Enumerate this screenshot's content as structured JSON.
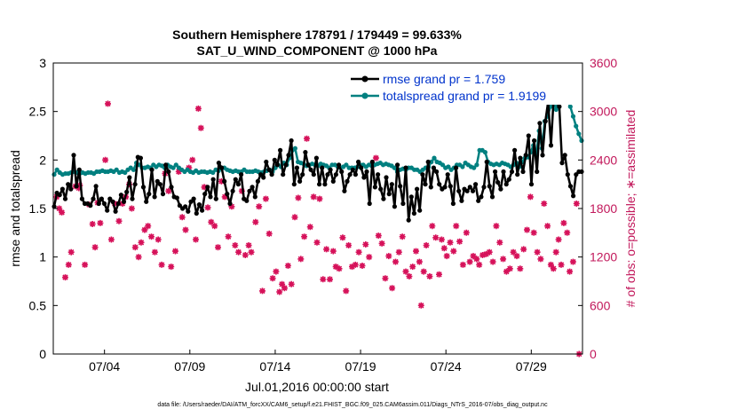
{
  "chart_data": {
    "type": "line",
    "title": "Southern Hemisphere 178791 / 179449 = 99.633%",
    "subtitle": "SAT_U_WIND_COMPONENT @ 1000 hPa",
    "ylabel_left": "rmse and totalspread",
    "ylabel_right": "# of obs: o=possible; ∗=assimilated",
    "xlabel": "Jul.01,2016 00:00:00 start",
    "footer": "data file: /Users/raeder/DAI/ATM_forcXX/CAM6_setup/f.e21.FHIST_BGC.f09_025.CAM6assim.011/Diags_NTrS_2016-07/obs_diag_output.nc",
    "x_tick_labels": [
      "07/04",
      "07/09",
      "07/14",
      "07/19",
      "07/24",
      "07/29"
    ],
    "x_tick_positions_days": [
      3,
      8,
      13,
      18,
      23,
      28
    ],
    "xlim_days": [
      0,
      31
    ],
    "y_left_ticks": [
      "0",
      "0.5",
      "1",
      "1.5",
      "2",
      "2.5",
      "3"
    ],
    "y_left_lim": [
      0,
      3
    ],
    "y_right_ticks": [
      "0",
      "600",
      "1200",
      "1800",
      "2400",
      "3000",
      "3600"
    ],
    "y_right_lim": [
      0,
      3600
    ],
    "colors": {
      "rmse": "#000000",
      "spread": "#008080",
      "obs": "#d6125a",
      "legend_text": "#0033cc",
      "right_axis": "#c2185b"
    },
    "series": [
      {
        "name": "rmse grand pr = 1.759",
        "legend_label": "rmse grand pr = 1.759",
        "marker": "circle",
        "values": [
          1.52,
          1.66,
          1.64,
          1.7,
          1.6,
          1.75,
          1.7,
          2.05,
          1.73,
          1.9,
          1.6,
          1.55,
          1.55,
          1.53,
          1.6,
          1.73,
          1.55,
          1.6,
          1.55,
          1.48,
          1.6,
          1.57,
          1.47,
          1.55,
          1.64,
          1.57,
          1.67,
          1.82,
          1.6,
          1.75,
          2.03,
          2.02,
          1.72,
          1.57,
          1.65,
          1.9,
          1.62,
          1.78,
          1.75,
          1.65,
          1.95,
          1.88,
          1.72,
          1.62,
          1.61,
          1.53,
          1.5,
          1.52,
          1.47,
          1.57,
          1.6,
          1.45,
          1.54,
          1.48,
          1.65,
          1.72,
          1.62,
          1.8,
          1.6,
          1.97,
          1.92,
          1.78,
          1.65,
          1.55,
          1.68,
          1.8,
          1.75,
          1.85,
          1.6,
          1.58,
          1.68,
          1.72,
          1.62,
          1.78,
          1.85,
          1.82,
          1.98,
          1.9,
          1.85,
          2.0,
          1.95,
          2.1,
          1.85,
          1.95,
          2.05,
          2.2,
          1.75,
          1.92,
          1.78,
          1.85,
          2.08,
          1.95,
          1.9,
          1.85,
          2.02,
          1.75,
          1.92,
          1.75,
          1.85,
          1.9,
          1.78,
          1.85,
          1.95,
          1.88,
          1.68,
          1.78,
          1.85,
          1.9,
          1.85,
          1.98,
          1.92,
          1.82,
          1.88,
          1.55,
          1.98,
          1.72,
          1.85,
          1.7,
          1.6,
          1.82,
          1.65,
          1.75,
          1.52,
          1.95,
          1.73,
          1.55,
          1.92,
          1.38,
          1.62,
          1.45,
          1.7,
          1.48,
          1.85,
          1.75,
          1.98,
          1.72,
          1.92,
          1.88,
          1.75,
          1.7,
          1.72,
          1.85,
          1.73,
          1.55,
          1.92,
          1.68,
          1.58,
          1.7,
          1.68,
          1.72,
          1.68,
          1.75,
          1.58,
          1.62,
          1.72,
          1.98,
          1.73,
          1.62,
          1.88,
          1.77,
          1.7,
          1.88,
          1.75,
          1.8,
          1.88,
          2.1,
          1.85,
          2.02,
          1.88,
          2.05,
          2.25,
          1.75,
          2.2,
          1.88,
          2.38,
          2.05,
          2.4,
          2.6,
          2.15,
          2.65,
          2.6,
          2.55,
          1.97,
          2.05,
          1.85,
          1.73,
          1.63,
          1.85,
          1.88,
          1.88
        ]
      },
      {
        "name": "totalspread grand pr = 1.9199",
        "legend_label": "totalspread grand pr = 1.9199",
        "marker": "circle",
        "values": [
          1.85,
          1.9,
          1.87,
          1.85,
          1.86,
          1.86,
          1.87,
          1.88,
          1.87,
          1.86,
          1.87,
          1.86,
          1.87,
          1.87,
          1.86,
          1.88,
          1.88,
          1.89,
          1.88,
          1.88,
          1.89,
          1.88,
          1.9,
          1.87,
          1.88,
          1.87,
          1.9,
          1.92,
          1.9,
          1.97,
          1.95,
          1.92,
          1.92,
          1.93,
          1.92,
          1.95,
          1.93,
          1.95,
          1.94,
          1.92,
          1.95,
          1.93,
          1.92,
          1.95,
          1.92,
          1.9,
          1.88,
          1.9,
          1.88,
          1.87,
          1.89,
          1.87,
          1.88,
          1.88,
          1.87,
          1.88,
          1.87,
          1.9,
          1.89,
          1.92,
          1.92,
          1.9,
          1.89,
          1.88,
          1.89,
          1.88,
          1.88,
          1.9,
          1.88,
          1.88,
          1.88,
          1.89,
          1.88,
          1.87,
          1.88,
          1.89,
          1.9,
          1.88,
          1.92,
          1.95,
          1.93,
          1.97,
          1.95,
          2.02,
          2.1,
          2.12,
          1.98,
          1.97,
          1.96,
          1.94,
          1.95,
          1.96,
          1.95,
          1.94,
          1.96,
          1.95,
          1.94,
          1.92,
          1.95,
          1.95,
          1.93,
          1.92,
          1.93,
          1.95,
          1.92,
          1.92,
          1.92,
          1.93,
          1.95,
          1.95,
          1.93,
          1.95,
          1.94,
          1.95,
          1.96,
          1.97,
          1.95,
          1.96,
          1.95,
          1.94,
          1.92,
          1.88,
          1.9,
          1.91,
          1.9,
          1.92,
          1.92,
          1.9,
          1.9,
          1.88,
          1.9,
          1.92,
          1.93,
          1.98,
          2.02,
          1.98,
          1.97,
          1.95,
          1.92,
          1.93,
          1.9,
          1.92,
          1.95,
          1.95,
          1.93,
          1.97,
          1.95,
          1.93,
          1.92,
          1.95,
          2.1,
          2.1,
          2.08,
          1.98,
          1.96,
          1.95,
          1.96,
          1.95,
          1.97,
          1.96,
          1.95,
          1.93,
          1.95,
          1.97,
          1.93,
          1.98,
          2.02,
          2.03,
          2.08,
          2.15,
          2.05,
          2.3,
          2.12,
          2.4,
          2.45,
          2.55,
          2.6,
          2.52,
          2.75,
          2.78,
          2.75,
          2.62,
          2.55,
          2.45,
          2.35,
          2.27,
          2.2
        ]
      }
    ],
    "obs_assimilated_pts": [
      [
        0.2,
        1.62
      ],
      [
        0.35,
        1.5
      ],
      [
        0.5,
        1.46
      ],
      [
        0.7,
        0.79
      ],
      [
        0.9,
        0.92
      ],
      [
        1.05,
        1.05
      ],
      [
        1.3,
        1.73
      ],
      [
        1.5,
        1.71
      ],
      [
        1.55,
        1.74
      ],
      [
        1.85,
        0.92
      ],
      [
        2.1,
        1.54
      ],
      [
        2.3,
        1.34
      ],
      [
        2.45,
        1.1
      ],
      [
        2.6,
        1.56
      ],
      [
        2.75,
        1.35
      ],
      [
        3.05,
        2.0
      ],
      [
        3.2,
        2.58
      ],
      [
        3.4,
        1.18
      ],
      [
        3.6,
        1.55
      ],
      [
        3.85,
        1.37
      ],
      [
        4.05,
        1.55
      ],
      [
        4.25,
        1.62
      ],
      [
        4.45,
        1.75
      ],
      [
        4.6,
        1.5
      ],
      [
        4.8,
        1.1
      ],
      [
        5.0,
        1.0
      ],
      [
        5.15,
        1.15
      ],
      [
        5.35,
        1.28
      ],
      [
        5.55,
        1.32
      ],
      [
        5.75,
        1.21
      ],
      [
        5.95,
        1.05
      ],
      [
        6.15,
        1.18
      ],
      [
        6.35,
        0.92
      ],
      [
        6.55,
        1.86
      ],
      [
        6.75,
        1.68
      ],
      [
        6.9,
        0.9
      ],
      [
        7.15,
        1.06
      ],
      [
        7.35,
        1.88
      ],
      [
        7.55,
        1.41
      ],
      [
        7.75,
        1.28
      ],
      [
        7.95,
        1.92
      ],
      [
        8.15,
        2.0
      ],
      [
        8.35,
        1.18
      ],
      [
        8.5,
        2.53
      ],
      [
        8.65,
        2.33
      ],
      [
        8.85,
        1.72
      ],
      [
        9.05,
        1.51
      ],
      [
        9.25,
        1.36
      ],
      [
        9.45,
        1.32
      ],
      [
        9.65,
        1.1
      ],
      [
        9.85,
        1.78
      ],
      [
        10.05,
        1.62
      ],
      [
        10.25,
        1.21
      ],
      [
        10.45,
        1.52
      ],
      [
        10.65,
        1.12
      ],
      [
        10.85,
        1.05
      ],
      [
        11.05,
        1.68
      ],
      [
        11.25,
        1.02
      ],
      [
        11.45,
        1.12
      ],
      [
        11.6,
        1.05
      ],
      [
        11.85,
        1.36
      ],
      [
        12.05,
        1.52
      ],
      [
        12.25,
        0.65
      ],
      [
        12.45,
        1.6
      ],
      [
        12.65,
        1.24
      ],
      [
        12.85,
        0.78
      ],
      [
        13.05,
        0.85
      ],
      [
        13.25,
        0.64
      ],
      [
        13.4,
        0.72
      ],
      [
        13.55,
        0.68
      ],
      [
        13.75,
        0.91
      ],
      [
        13.95,
        0.72
      ],
      [
        14.15,
        1.41
      ],
      [
        14.35,
        1.61
      ],
      [
        14.5,
        0.98
      ],
      [
        14.7,
        1.21
      ],
      [
        14.85,
        2.22
      ],
      [
        15.05,
        1.31
      ],
      [
        15.25,
        1.62
      ],
      [
        15.45,
        1.15
      ],
      [
        15.6,
        1.6
      ],
      [
        15.8,
        0.77
      ],
      [
        16.0,
        1.08
      ],
      [
        16.2,
        0.77
      ],
      [
        16.4,
        1.06
      ],
      [
        16.55,
        0.9
      ],
      [
        16.75,
        0.88
      ],
      [
        16.95,
        1.2
      ],
      [
        17.15,
        0.65
      ],
      [
        17.3,
        1.12
      ],
      [
        17.5,
        0.9
      ],
      [
        17.7,
        0.92
      ],
      [
        17.9,
        1.05
      ],
      [
        18.1,
        0.91
      ],
      [
        18.3,
        1.13
      ],
      [
        18.5,
        1.0
      ],
      [
        18.7,
        1.95
      ],
      [
        18.9,
        2.02
      ],
      [
        19.05,
        1.22
      ],
      [
        19.25,
        1.14
      ],
      [
        19.45,
        0.78
      ],
      [
        19.65,
        1.01
      ],
      [
        19.85,
        0.68
      ],
      [
        20.05,
        0.95
      ],
      [
        20.25,
        1.05
      ],
      [
        20.45,
        1.21
      ],
      [
        20.65,
        0.85
      ],
      [
        20.85,
        0.8
      ],
      [
        21.05,
        0.9
      ],
      [
        21.25,
        1.06
      ],
      [
        21.45,
        0.95
      ],
      [
        21.55,
        0.5
      ],
      [
        21.7,
        0.85
      ],
      [
        21.85,
        1.12
      ],
      [
        22.05,
        0.8
      ],
      [
        22.2,
        1.32
      ],
      [
        22.4,
        1.2
      ],
      [
        22.6,
        0.82
      ],
      [
        22.75,
        1.18
      ],
      [
        22.9,
        1.09
      ],
      [
        23.05,
        1.01
      ],
      [
        23.25,
        1.15
      ],
      [
        23.45,
        1.06
      ],
      [
        23.6,
        1.32
      ],
      [
        23.8,
        1.16
      ],
      [
        24.0,
        0.92
      ],
      [
        24.2,
        1.25
      ],
      [
        24.4,
        0.95
      ],
      [
        24.6,
        1.01
      ],
      [
        24.8,
        0.98
      ],
      [
        24.95,
        0.92
      ],
      [
        25.15,
        1.02
      ],
      [
        25.35,
        1.03
      ],
      [
        25.55,
        1.05
      ],
      [
        25.75,
        0.95
      ],
      [
        25.95,
        1.32
      ],
      [
        26.15,
        1.15
      ],
      [
        26.35,
        0.98
      ],
      [
        26.55,
        0.85
      ],
      [
        26.75,
        0.88
      ],
      [
        26.95,
        1.05
      ],
      [
        27.15,
        1.01
      ],
      [
        27.35,
        0.88
      ],
      [
        27.55,
        1.08
      ],
      [
        27.75,
        1.28
      ],
      [
        27.95,
        1.62
      ],
      [
        28.15,
        1.25
      ],
      [
        28.35,
        1.05
      ],
      [
        28.55,
        0.98
      ],
      [
        28.75,
        1.55
      ],
      [
        28.95,
        1.32
      ],
      [
        29.15,
        0.92
      ],
      [
        29.3,
        0.88
      ],
      [
        29.45,
        1.05
      ],
      [
        29.6,
        1.18
      ],
      [
        29.75,
        0.92
      ],
      [
        29.9,
        1.35
      ],
      [
        30.1,
        1.25
      ],
      [
        30.25,
        0.85
      ],
      [
        30.45,
        0.95
      ],
      [
        30.65,
        1.55
      ],
      [
        30.8,
        0.0
      ]
    ]
  },
  "legend": {
    "location": "top-right"
  }
}
